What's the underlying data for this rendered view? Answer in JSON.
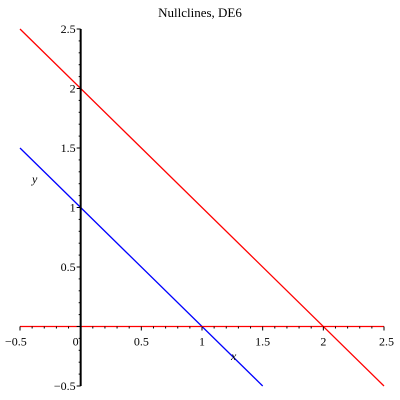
{
  "chart_data": {
    "type": "line",
    "title": "Nullclines, DE6",
    "xlabel": "x",
    "ylabel": "y",
    "xlim": [
      -0.5,
      2.5
    ],
    "ylim": [
      -0.5,
      2.5
    ],
    "grid": false,
    "x_ticks": [
      -0.5,
      0,
      0.5,
      1,
      1.5,
      2,
      2.5
    ],
    "x_tick_labels": [
      "−0.5",
      "0",
      "0.5",
      "1",
      "1.5",
      "2",
      "2.5"
    ],
    "y_ticks": [
      -0.5,
      0.5,
      1,
      1.5,
      2,
      2.5
    ],
    "y_tick_labels": [
      "−0.5",
      "0.5",
      "1",
      "1.5",
      "2",
      "2.5"
    ],
    "series": [
      {
        "color": "#ff0000",
        "x": [
          -0.5,
          2.5
        ],
        "y": [
          2.5,
          -0.5
        ]
      },
      {
        "color": "#0000ff",
        "x": [
          -0.5,
          1.5
        ],
        "y": [
          1.5,
          -0.5
        ]
      },
      {
        "color": "#ff0000",
        "x": [
          -0.5,
          2.5
        ],
        "y": [
          0,
          0
        ]
      }
    ]
  }
}
